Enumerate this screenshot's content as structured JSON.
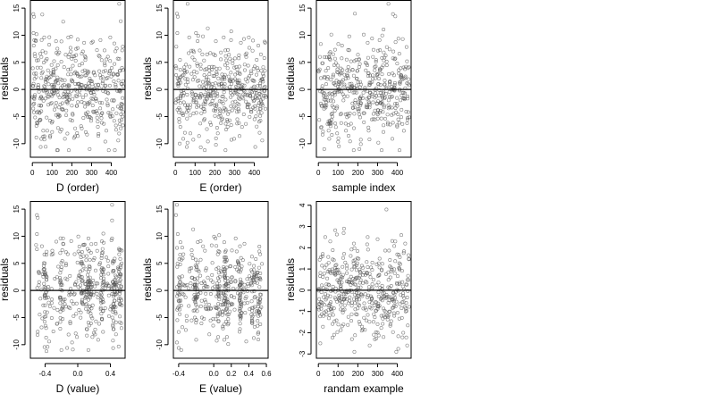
{
  "figure": {
    "background": "#ffffff",
    "point_color": "#555555",
    "axis_color": "#000000"
  },
  "chart_data": [
    {
      "type": "scatter",
      "xlabel": "D (order)",
      "ylabel": "residuals",
      "xlim": [
        -10,
        470
      ],
      "ylim": [
        -12.5,
        16.5
      ],
      "xticks": [
        0,
        100,
        200,
        300,
        400
      ],
      "xtick_labels": [
        "0",
        "100",
        "200",
        "300",
        "400"
      ],
      "yticks": [
        -10,
        -5,
        0,
        5,
        10,
        15
      ],
      "ytick_labels": [
        "-10",
        "-5",
        "0",
        "5",
        "10",
        "15"
      ],
      "hline": 0,
      "n_points": 460,
      "points": [
        [
          5,
          13.9
        ],
        [
          8,
          13.4
        ],
        [
          6,
          10.4
        ],
        [
          10,
          9.1
        ],
        [
          7,
          8.1
        ],
        [
          14,
          6.1
        ],
        [
          20,
          2.3
        ],
        [
          30,
          5.4
        ],
        [
          42,
          -10.6
        ],
        [
          55,
          -7.6
        ],
        [
          90,
          -8.8
        ],
        [
          125,
          -11.2
        ],
        [
          165,
          -9.1
        ],
        [
          230,
          -8.6
        ],
        [
          290,
          -11.0
        ],
        [
          335,
          -8.2
        ],
        [
          375,
          -7.6
        ],
        [
          435,
          -9.4
        ],
        [
          440,
          15.8
        ],
        [
          448,
          12.6
        ],
        [
          60,
          9.6
        ],
        [
          120,
          8.9
        ],
        [
          182,
          9.6
        ],
        [
          230,
          9.2
        ],
        [
          262,
          8.6
        ],
        [
          300,
          8.6
        ],
        [
          345,
          9.1
        ],
        [
          395,
          9.6
        ],
        [
          415,
          8.5
        ],
        [
          455,
          7.2
        ]
      ],
      "spread": {
        "sd": 4.2,
        "min": -11.2,
        "max": 15.8
      }
    },
    {
      "type": "scatter",
      "xlabel": "E (order)",
      "ylabel": "residuals",
      "xlim": [
        -10,
        470
      ],
      "ylim": [
        -12.5,
        16.5
      ],
      "xticks": [
        0,
        100,
        200,
        300,
        400
      ],
      "xtick_labels": [
        "0",
        "100",
        "200",
        "300",
        "400"
      ],
      "yticks": [
        -10,
        -5,
        0,
        5,
        10,
        15
      ],
      "ytick_labels": [
        "-10",
        "-5",
        "0",
        "5",
        "10",
        "15"
      ],
      "hline": 0,
      "n_points": 460,
      "points": [
        [
          8,
          14.0
        ],
        [
          12,
          13.4
        ],
        [
          62,
          15.8
        ],
        [
          10,
          10.4
        ],
        [
          5,
          7.9
        ],
        [
          22,
          -10.0
        ],
        [
          40,
          -9.1
        ],
        [
          58,
          -10.6
        ],
        [
          120,
          -8.6
        ],
        [
          165,
          -9.6
        ],
        [
          215,
          -8.1
        ],
        [
          265,
          -6.9
        ],
        [
          298,
          -9.1
        ],
        [
          325,
          -8.6
        ],
        [
          405,
          -10.6
        ],
        [
          440,
          -9.4
        ],
        [
          70,
          9.6
        ],
        [
          140,
          9.8
        ],
        [
          205,
          8.9
        ],
        [
          245,
          9.6
        ],
        [
          282,
          9.1
        ],
        [
          332,
          8.6
        ],
        [
          372,
          9.6
        ],
        [
          420,
          8.1
        ],
        [
          455,
          8.6
        ]
      ],
      "spread": {
        "sd": 4.2,
        "min": -11.2,
        "max": 15.8
      }
    },
    {
      "type": "scatter",
      "xlabel": "sample index",
      "ylabel": "residuals",
      "xlim": [
        -10,
        470
      ],
      "ylim": [
        -12.5,
        16.5
      ],
      "xticks": [
        0,
        100,
        200,
        300,
        400
      ],
      "xtick_labels": [
        "0",
        "100",
        "200",
        "300",
        "400"
      ],
      "yticks": [
        -10,
        -5,
        0,
        5,
        10,
        15
      ],
      "ytick_labels": [
        "-10",
        "-5",
        "0",
        "5",
        "10",
        "15"
      ],
      "hline": 0,
      "n_points": 460,
      "points": [
        [
          8,
          6.0
        ],
        [
          12,
          8.4
        ],
        [
          30,
          -11.0
        ],
        [
          55,
          -9.1
        ],
        [
          95,
          -8.1
        ],
        [
          140,
          -7.6
        ],
        [
          208,
          -11.0
        ],
        [
          215,
          -10.1
        ],
        [
          255,
          -7.6
        ],
        [
          330,
          -6.6
        ],
        [
          375,
          -9.1
        ],
        [
          420,
          -5.1
        ],
        [
          445,
          -4.1
        ],
        [
          185,
          14.0
        ],
        [
          310,
          9.1
        ],
        [
          355,
          15.8
        ],
        [
          378,
          13.9
        ],
        [
          390,
          13.5
        ],
        [
          230,
          10.1
        ],
        [
          250,
          8.6
        ],
        [
          272,
          9.4
        ],
        [
          120,
          8.1
        ],
        [
          60,
          6.9
        ],
        [
          410,
          6.6
        ],
        [
          440,
          2.1
        ]
      ],
      "spread": {
        "sd": 4.2,
        "min": -11.2,
        "max": 15.8
      }
    },
    {
      "type": "scatter",
      "xlabel": "D (value)",
      "ylabel": "residuals",
      "xlim": [
        -0.58,
        0.58
      ],
      "ylim": [
        -12.5,
        16.5
      ],
      "xticks": [
        -0.4,
        0.0,
        0.4
      ],
      "xtick_labels": [
        "-0.4",
        "0.0",
        "0.4"
      ],
      "yticks": [
        -10,
        -5,
        0,
        5,
        10,
        15
      ],
      "ytick_labels": [
        "-10",
        "-5",
        "0",
        "5",
        "10",
        "15"
      ],
      "hline": 0,
      "n_points": 460,
      "points": [
        [
          -0.5,
          13.9
        ],
        [
          -0.49,
          13.4
        ],
        [
          -0.5,
          10.4
        ],
        [
          -0.51,
          8.4
        ],
        [
          -0.5,
          7.6
        ],
        [
          -0.49,
          -7.6
        ],
        [
          -0.37,
          -10.4
        ],
        [
          -0.35,
          -9.4
        ],
        [
          -0.2,
          -11.0
        ],
        [
          -0.13,
          -10.6
        ],
        [
          -0.07,
          -9.6
        ],
        [
          -0.01,
          -8.6
        ],
        [
          0.13,
          -11.0
        ],
        [
          0.18,
          -8.6
        ],
        [
          0.25,
          -9.1
        ],
        [
          0.42,
          15.8
        ],
        [
          0.42,
          12.9
        ],
        [
          -0.32,
          6.6
        ],
        [
          -0.18,
          9.6
        ],
        [
          -0.08,
          9.1
        ],
        [
          0.02,
          8.1
        ],
        [
          0.13,
          9.6
        ],
        [
          0.22,
          8.6
        ],
        [
          0.42,
          9.6
        ],
        [
          0.35,
          6.1
        ]
      ],
      "spread": {
        "sd": 4.2,
        "min": -11.2,
        "max": 15.8
      }
    },
    {
      "type": "scatter",
      "xlabel": "E (value)",
      "ylabel": "residuals",
      "xlim": [
        -0.46,
        0.62
      ],
      "ylim": [
        -12.5,
        16.5
      ],
      "xticks": [
        -0.4,
        0.0,
        0.2,
        0.4,
        0.6
      ],
      "xtick_labels": [
        "-0.4",
        "0.0",
        "0.2",
        "0.4",
        "0.6"
      ],
      "yticks": [
        -10,
        -5,
        0,
        5,
        10,
        15
      ],
      "ytick_labels": [
        "-10",
        "-5",
        "0",
        "5",
        "10",
        "15"
      ],
      "hline": 0,
      "n_points": 460,
      "points": [
        [
          -0.42,
          15.8
        ],
        [
          -0.43,
          13.9
        ],
        [
          -0.41,
          10.4
        ],
        [
          -0.38,
          8.9
        ],
        [
          -0.42,
          -9.6
        ],
        [
          -0.4,
          -10.6
        ],
        [
          -0.37,
          -11.0
        ],
        [
          -0.2,
          -9.1
        ],
        [
          -0.05,
          -8.1
        ],
        [
          0.05,
          -8.6
        ],
        [
          0.12,
          -9.1
        ],
        [
          0.15,
          -8.6
        ],
        [
          0.3,
          -6.1
        ],
        [
          0.5,
          -5.6
        ],
        [
          0.52,
          -4.1
        ],
        [
          -0.25,
          6.6
        ],
        [
          -0.15,
          9.1
        ],
        [
          0.02,
          9.6
        ],
        [
          0.12,
          8.9
        ],
        [
          0.25,
          9.6
        ],
        [
          0.35,
          8.6
        ],
        [
          0.52,
          8.1
        ],
        [
          0.55,
          4.9
        ],
        [
          0.12,
          6.1
        ],
        [
          0.15,
          5.6
        ]
      ],
      "spread": {
        "sd": 4.2,
        "min": -11.2,
        "max": 15.8
      }
    },
    {
      "type": "scatter",
      "xlabel": "randam example",
      "ylabel": "residuals",
      "xlim": [
        -10,
        470
      ],
      "ylim": [
        -3.2,
        4.2
      ],
      "xticks": [
        0,
        100,
        200,
        300,
        400
      ],
      "xtick_labels": [
        "0",
        "100",
        "200",
        "300",
        "400"
      ],
      "yticks": [
        -3,
        -2,
        -1,
        0,
        1,
        2,
        3,
        4
      ],
      "ytick_labels": [
        "-3",
        "-2",
        "-1",
        "0",
        "1",
        "2",
        "3",
        "4"
      ],
      "hline": 0,
      "n_points": 460,
      "points": [
        [
          345,
          3.8
        ],
        [
          130,
          2.9
        ],
        [
          35,
          2.5
        ],
        [
          60,
          2.3
        ],
        [
          250,
          2.5
        ],
        [
          300,
          2.4
        ],
        [
          420,
          2.6
        ],
        [
          440,
          2.2
        ],
        [
          180,
          2.2
        ],
        [
          390,
          2.3
        ],
        [
          10,
          -2.5
        ],
        [
          80,
          -2.1
        ],
        [
          170,
          -2.3
        ],
        [
          260,
          -2.6
        ],
        [
          330,
          -2.2
        ],
        [
          395,
          -2.9
        ],
        [
          450,
          -2.6
        ],
        [
          120,
          -1.7
        ],
        [
          220,
          -1.9
        ],
        [
          300,
          -1.6
        ],
        [
          430,
          -2.0
        ],
        [
          365,
          -1.6
        ]
      ],
      "spread": {
        "sd": 1.0,
        "min": -2.9,
        "max": 3.8
      }
    }
  ]
}
